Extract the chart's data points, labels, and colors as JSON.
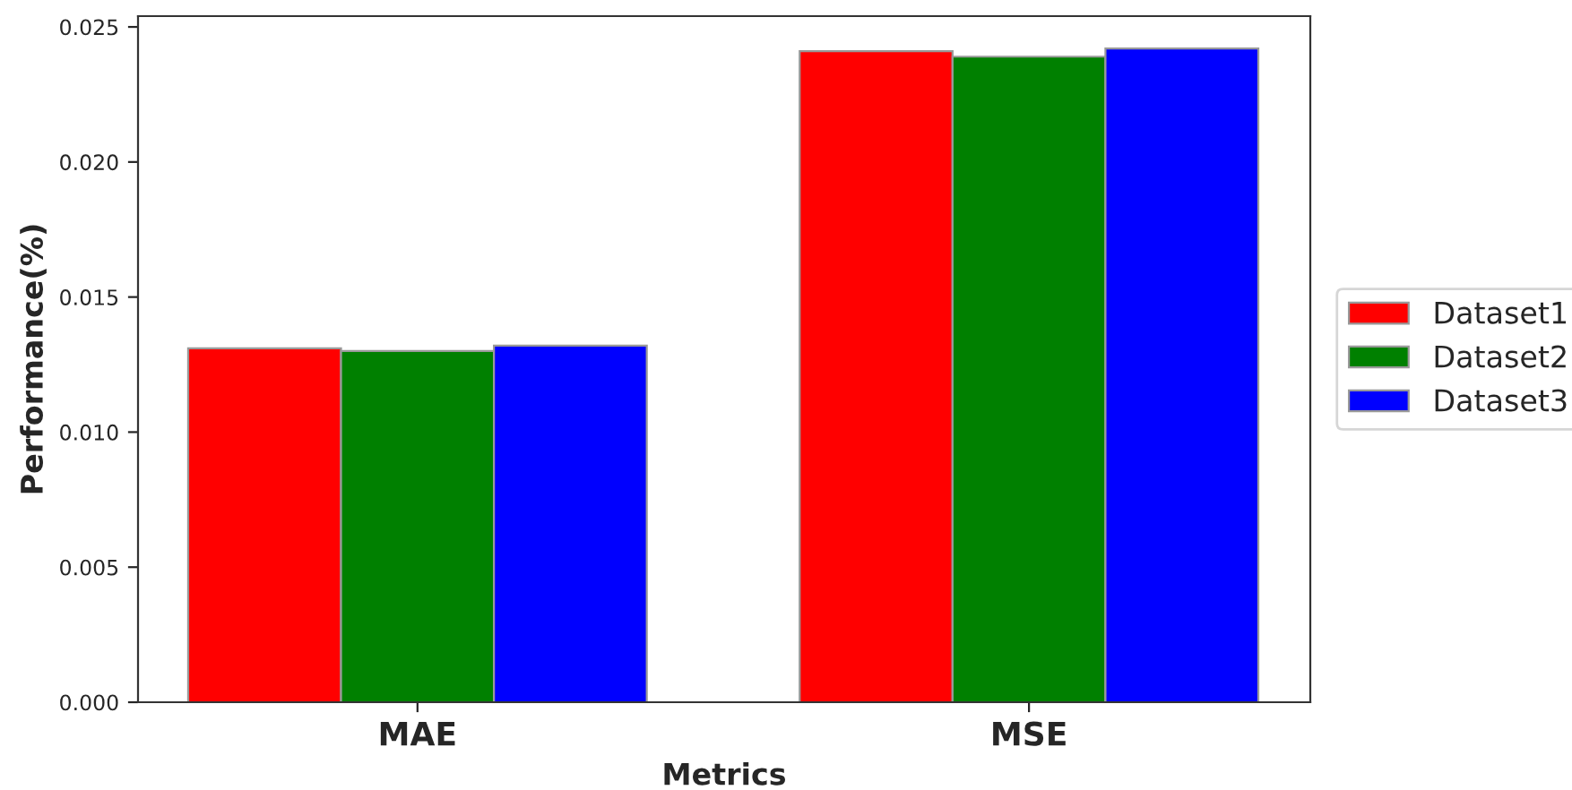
{
  "chart_data": {
    "type": "bar",
    "xlabel": "Metrics",
    "ylabel": "Performance(%)",
    "categories": [
      "MAE",
      "MSE"
    ],
    "series": [
      {
        "name": "Dataset1",
        "color": "#ff0000",
        "values": [
          0.0131,
          0.0241
        ]
      },
      {
        "name": "Dataset2",
        "color": "#008000",
        "values": [
          0.013,
          0.0239
        ]
      },
      {
        "name": "Dataset3",
        "color": "#0000ff",
        "values": [
          0.0132,
          0.0242
        ]
      }
    ],
    "ylim": [
      0,
      0.0254
    ],
    "yticks": [
      {
        "value": 0,
        "label": "0.000"
      },
      {
        "value": 0.005,
        "label": "0.005"
      },
      {
        "value": 0.01,
        "label": "0.010"
      },
      {
        "value": 0.015,
        "label": "0.015"
      },
      {
        "value": 0.02,
        "label": "0.020"
      },
      {
        "value": 0.025,
        "label": "0.025"
      }
    ],
    "grid": false,
    "legend": "right"
  }
}
